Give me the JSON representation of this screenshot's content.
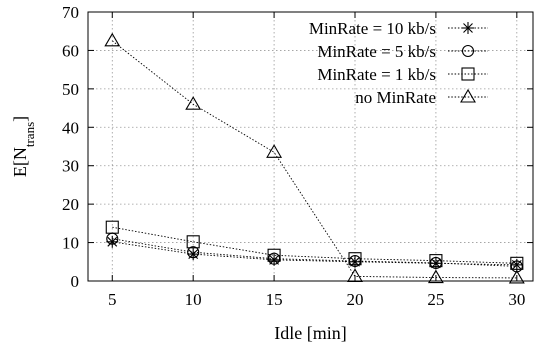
{
  "chart_data": {
    "type": "line",
    "xlabel": "Idle [min]",
    "ylabel": {
      "main": "E[N",
      "sub": "trans",
      "close": "]"
    },
    "x": [
      5,
      10,
      15,
      20,
      25,
      30
    ],
    "x_ticks": [
      "5",
      "10",
      "15",
      "20",
      "25",
      "30"
    ],
    "xlim": [
      3.5,
      31
    ],
    "ylim": [
      0,
      70
    ],
    "y_ticks": [
      "0",
      "10",
      "20",
      "30",
      "40",
      "50",
      "60",
      "70"
    ],
    "grid": true,
    "legend_position": "top-right",
    "series": [
      {
        "name": "MinRate = 10 kb/s",
        "marker": "asterisk",
        "values": [
          10.2,
          7.0,
          5.5,
          5.0,
          4.6,
          4.2
        ]
      },
      {
        "name": "MinRate = 5 kb/s",
        "marker": "circle",
        "values": [
          11.0,
          7.5,
          5.8,
          5.2,
          4.7,
          3.8
        ]
      },
      {
        "name": "MinRate = 1 kb/s",
        "marker": "square",
        "values": [
          14.0,
          10.2,
          6.7,
          5.8,
          5.3,
          4.6
        ]
      },
      {
        "name": "no MinRate",
        "marker": "triangle",
        "values": [
          62.5,
          46.0,
          33.5,
          1.2,
          0.9,
          0.8
        ]
      }
    ]
  }
}
